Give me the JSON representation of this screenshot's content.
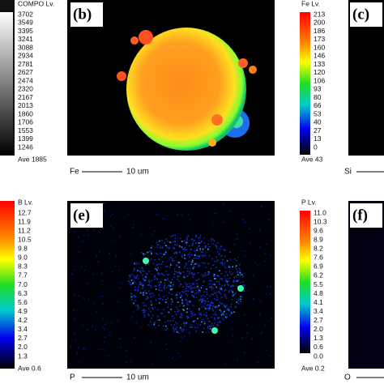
{
  "colorbars": [
    {
      "title": "COMPO Lv.",
      "ticks": [
        "3702",
        "3549",
        "3395",
        "3241",
        "3088",
        "2934",
        "2781",
        "2627",
        "2474",
        "2320",
        "2167",
        "2013",
        "1860",
        "1706",
        "1553",
        "1399",
        "1246"
      ],
      "average": "Ave 1885"
    },
    {
      "title": "Fe Lv.",
      "ticks": [
        "213",
        "200",
        "186",
        "173",
        "160",
        "146",
        "133",
        "120",
        "106",
        "93",
        "80",
        "66",
        "53",
        "40",
        "27",
        "13",
        "0"
      ],
      "average": "Ave 43"
    },
    {
      "title": "B Lv.",
      "ticks": [
        "12.7",
        "11.9",
        "11.2",
        "10.5",
        "9.8",
        "9.0",
        "8.3",
        "7.7",
        "7.0",
        "6.3",
        "5.6",
        "4.9",
        "4.2",
        "3.4",
        "2.7",
        "2.0",
        "1.3"
      ],
      "average": "Ave 0.6"
    },
    {
      "title": "P Lv.",
      "ticks": [
        "11.0",
        "10.3",
        "9.6",
        "8.9",
        "8.2",
        "7.6",
        "6.9",
        "6.2",
        "5.5",
        "4.8",
        "4.1",
        "3.4",
        "2.7",
        "2.0",
        "1.3",
        "0.6",
        "0.0"
      ],
      "average": "Ave 0.2"
    }
  ],
  "panels": [
    {
      "label": "(b)"
    },
    {
      "label": "(c)"
    },
    {
      "label": "(e)"
    },
    {
      "label": "(f)"
    }
  ],
  "scale_bars": [
    {
      "element": "Fe",
      "length": "10 um"
    },
    {
      "element": "Si"
    },
    {
      "element": "P",
      "length": "10 um"
    },
    {
      "element": "O"
    }
  ]
}
